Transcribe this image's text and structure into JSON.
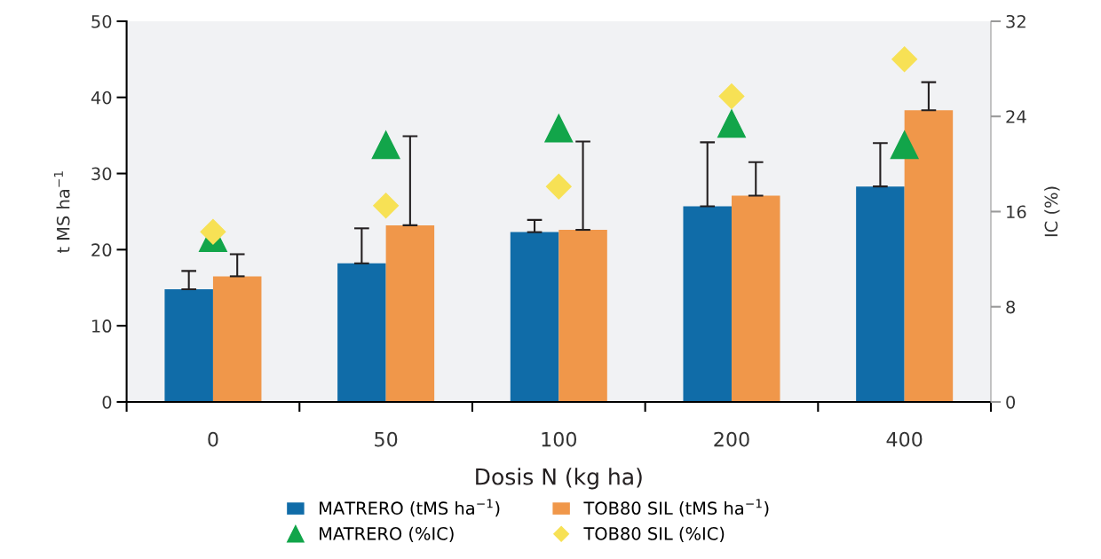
{
  "chart_data": {
    "type": "bar",
    "xlabel": "Dosis N (kg ha)",
    "ylabel": "t MS ha$^{−1}$",
    "y2label": "IC (%)",
    "categories": [
      "0",
      "50",
      "100",
      "200",
      "400"
    ],
    "series": [
      {
        "name": "MATRERO (tMS ha$^{−1}$)",
        "color": "#106ca8",
        "values": [
          14.8,
          18.2,
          22.3,
          25.7,
          28.3
        ],
        "errors": [
          [
            14.8,
            17.2
          ],
          [
            18.2,
            22.8
          ],
          [
            22.3,
            23.9
          ],
          [
            25.7,
            34.1
          ],
          [
            28.3,
            34.0
          ]
        ]
      },
      {
        "name": "TOB80 SIL (tMS ha$^{−1}$)",
        "color": "#f0974a",
        "values": [
          16.5,
          23.2,
          22.6,
          27.1,
          38.3
        ],
        "errors": [
          [
            16.5,
            19.4
          ],
          [
            23.2,
            34.9
          ],
          [
            22.6,
            34.2
          ],
          [
            27.1,
            31.5
          ],
          [
            38.3,
            42.0
          ]
        ]
      },
      {
        "name": "MATRERO (%IC)",
        "type": "scatter",
        "marker": "triangle",
        "axis": "y2",
        "color": "#12a54a",
        "values": [
          13.8,
          21.6,
          23.0,
          23.4,
          21.6
        ]
      },
      {
        "name": "TOB80 SIL (%IC)",
        "type": "scatter",
        "marker": "diamond",
        "axis": "y2",
        "color": "#f7e155",
        "values": [
          14.3,
          16.5,
          18.1,
          25.7,
          28.8
        ]
      }
    ],
    "ylim": [
      0,
      50
    ],
    "yticks": [
      0,
      10,
      20,
      30,
      40,
      50
    ],
    "y2lim": [
      0,
      32
    ],
    "y2ticks": [
      0,
      8,
      16,
      24,
      32
    ],
    "grid": false,
    "legend": "bottom"
  }
}
